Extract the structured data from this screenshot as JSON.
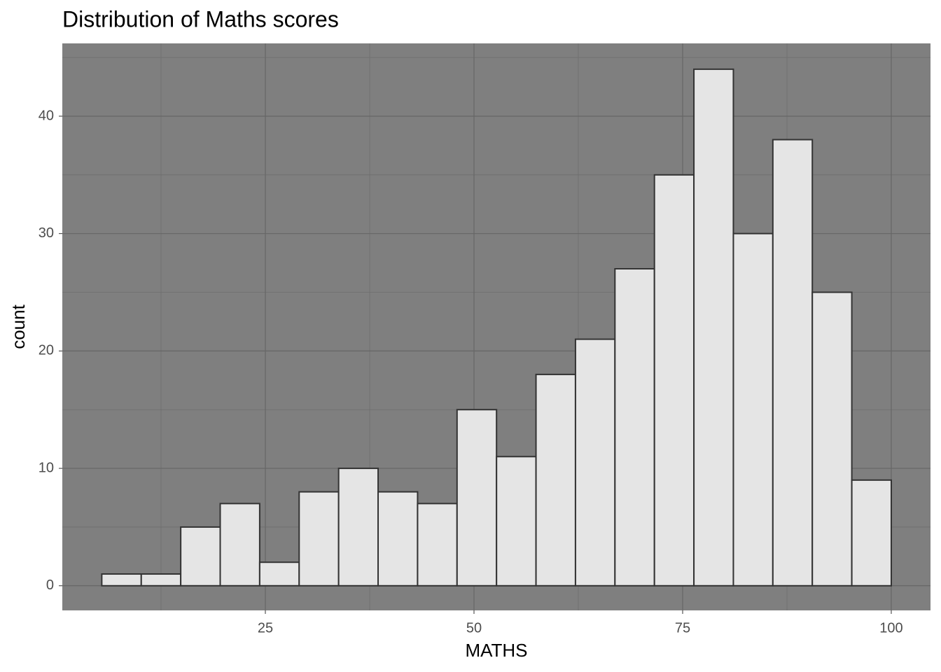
{
  "chart_data": {
    "type": "histogram",
    "title": "Distribution of Maths scores",
    "x_label": "MATHS",
    "y_label": "count",
    "bins": [
      5.4,
      10.13,
      14.86,
      19.59,
      24.32,
      29.05,
      33.78,
      38.51,
      43.24,
      47.97,
      52.7,
      57.43,
      62.16,
      66.89,
      71.62,
      76.35,
      81.08,
      85.81,
      90.54,
      95.27,
      100
    ],
    "values": [
      1,
      1,
      5,
      7,
      2,
      8,
      10,
      8,
      7,
      15,
      11,
      18,
      21,
      27,
      35,
      44,
      30,
      38,
      25,
      9
    ],
    "color": "#e5e5e5",
    "edge_color": "#333333",
    "xlim": [
      0.67,
      104.7
    ],
    "xticks": [
      25,
      50,
      75,
      100
    ],
    "ylim": [
      -2.1,
      46.2
    ],
    "yticks": [
      0,
      10,
      20,
      30,
      40
    ],
    "grid": true
  }
}
